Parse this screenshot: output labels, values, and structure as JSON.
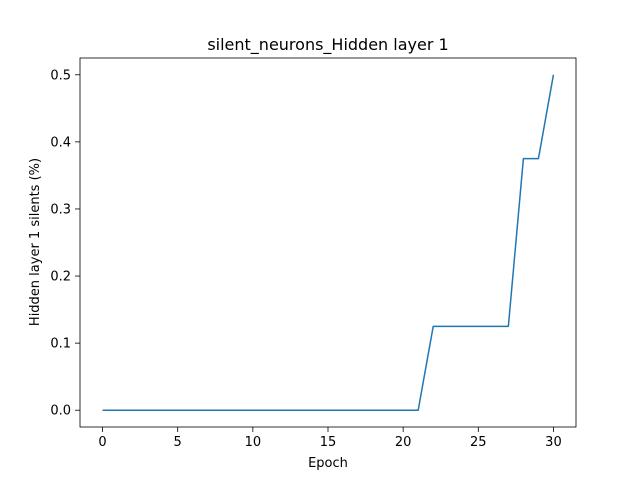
{
  "chart_data": {
    "type": "line",
    "title": "silent_neurons_Hidden layer 1",
    "xlabel": "Epoch",
    "ylabel": "Hidden layer 1 silents (%)",
    "xlim": [
      -1.5,
      31.5
    ],
    "ylim": [
      -0.025,
      0.525
    ],
    "xticks": [
      0,
      5,
      10,
      15,
      20,
      25,
      30
    ],
    "xtick_labels": [
      "0",
      "5",
      "10",
      "15",
      "20",
      "25",
      "30"
    ],
    "yticks": [
      0.0,
      0.1,
      0.2,
      0.3,
      0.4,
      0.5
    ],
    "ytick_labels": [
      "0.0",
      "0.1",
      "0.2",
      "0.3",
      "0.4",
      "0.5"
    ],
    "grid": false,
    "series": [
      {
        "color": "#1f77b4",
        "x": [
          0,
          1,
          2,
          3,
          4,
          5,
          6,
          7,
          8,
          9,
          10,
          11,
          12,
          13,
          14,
          15,
          16,
          17,
          18,
          19,
          20,
          21,
          22,
          23,
          24,
          25,
          26,
          27,
          28,
          29,
          30
        ],
        "values": [
          0,
          0,
          0,
          0,
          0,
          0,
          0,
          0,
          0,
          0,
          0,
          0,
          0,
          0,
          0,
          0,
          0,
          0,
          0,
          0,
          0,
          0,
          0.125,
          0.125,
          0.125,
          0.125,
          0.125,
          0.125,
          0.375,
          0.375,
          0.5
        ]
      }
    ]
  }
}
